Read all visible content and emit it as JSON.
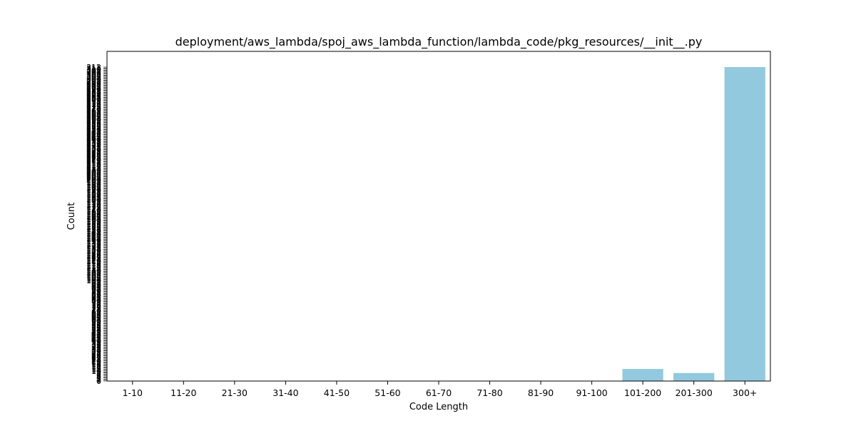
{
  "chart_data": {
    "type": "bar",
    "title": "deployment/aws_lambda/spoj_aws_lambda_function/lambda_code/pkg_resources/__init__.py",
    "xlabel": "Code Length",
    "ylabel": "Count",
    "categories": [
      "1-10",
      "11-20",
      "21-30",
      "31-40",
      "41-50",
      "51-60",
      "61-70",
      "71-80",
      "81-90",
      "91-100",
      "101-200",
      "201-300",
      "300+"
    ],
    "values": [
      0,
      0,
      0,
      0,
      0,
      0,
      0,
      0,
      0,
      0,
      12,
      8,
      312
    ],
    "ylim": [
      0,
      312
    ],
    "bar_color": "#92c9de",
    "grid": false,
    "legend": "none",
    "y_ticks_note": "dense overlapping integer tick labels from 0 to ~312"
  }
}
